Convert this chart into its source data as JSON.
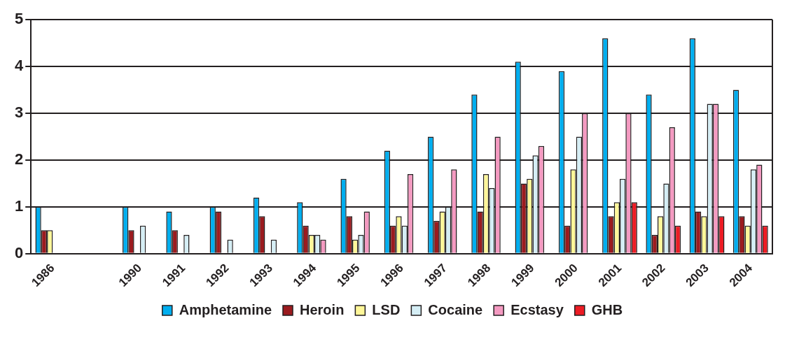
{
  "chart_data": {
    "type": "bar",
    "categories": [
      "1986",
      null,
      "1990",
      "1991",
      "1992",
      "1993",
      "1994",
      "1995",
      "1996",
      "1997",
      "1998",
      "1999",
      "2000",
      "2001",
      "2002",
      "2003",
      "2004"
    ],
    "series": [
      {
        "name": "Amphetamine",
        "color": "#00aeef",
        "values": [
          1,
          null,
          1,
          0.9,
          1,
          1.2,
          1.1,
          1.6,
          2.2,
          2.5,
          3.4,
          4.1,
          3.9,
          4.6,
          3.4,
          4.6,
          3.5
        ]
      },
      {
        "name": "Heroin",
        "color": "#9b1b1f",
        "values": [
          0.5,
          null,
          0.5,
          0.5,
          0.9,
          0.8,
          0.6,
          0.8,
          0.6,
          0.7,
          0.9,
          1.5,
          0.6,
          0.8,
          0.4,
          0.9,
          0.8
        ]
      },
      {
        "name": "LSD",
        "color": "#fff799",
        "values": [
          0.5,
          null,
          null,
          null,
          null,
          null,
          0.4,
          0.3,
          0.8,
          0.9,
          1.7,
          1.6,
          1.8,
          1.1,
          0.8,
          0.8,
          0.6
        ]
      },
      {
        "name": "Cocaine",
        "color": "#d5eef5",
        "values": [
          null,
          null,
          0.6,
          0.4,
          0.3,
          0.3,
          0.4,
          0.4,
          0.6,
          1,
          1.4,
          2.1,
          2.5,
          1.6,
          1.5,
          3.2,
          1.8
        ]
      },
      {
        "name": "Ecstasy",
        "color": "#f49ac1",
        "values": [
          null,
          null,
          null,
          null,
          null,
          null,
          0.3,
          0.9,
          1.7,
          1.8,
          2.5,
          2.3,
          3,
          3,
          2.7,
          3.2,
          1.9
        ]
      },
      {
        "name": "GHB",
        "color": "#ed1c24",
        "values": [
          null,
          null,
          null,
          null,
          null,
          null,
          null,
          null,
          null,
          null,
          null,
          null,
          null,
          1.1,
          0.6,
          0.8,
          0.6
        ]
      }
    ],
    "ylim": [
      0,
      5
    ],
    "yticks": [
      0,
      1,
      2,
      3,
      4,
      5
    ],
    "grid": "y",
    "legend": "bottom"
  }
}
